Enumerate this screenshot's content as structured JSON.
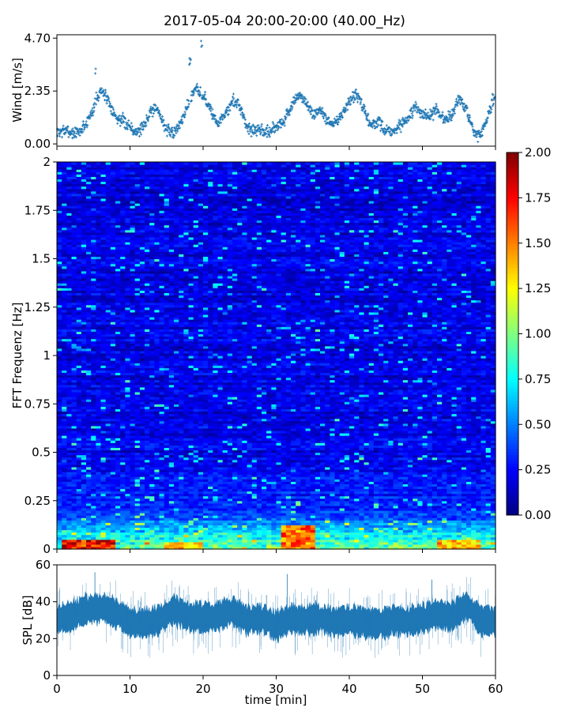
{
  "figure": {
    "title": "2017-05-04 20:00-20:00 (40.00_Hz)",
    "xlabel": "time [min]"
  },
  "chart_data": [
    {
      "type": "scatter",
      "panel": "wind",
      "ylabel": "Wind [m/s]",
      "xlim": [
        0,
        60
      ],
      "ylim": [
        -0.1,
        4.85
      ],
      "yticks": [
        0.0,
        2.35,
        4.7
      ],
      "ytick_labels": [
        "0.00",
        "2.35",
        "4.70"
      ],
      "xticks": [
        0,
        10,
        20,
        30,
        40,
        50,
        60
      ],
      "xtick_labels_shown": false,
      "color": "#1f77b4",
      "marker": "+",
      "x": [
        0,
        1,
        2,
        3,
        4,
        5,
        6,
        7,
        8,
        9,
        10,
        11,
        12,
        13,
        14,
        15,
        16,
        17,
        18,
        19,
        20,
        21,
        22,
        23,
        24,
        25,
        26,
        27,
        28,
        29,
        30,
        31,
        32,
        33,
        34,
        35,
        36,
        37,
        38,
        39,
        40,
        41,
        42,
        43,
        44,
        45,
        46,
        47,
        48,
        49,
        50,
        51,
        52,
        53,
        54,
        55,
        56,
        57,
        58,
        59,
        60
      ],
      "y": [
        0.5,
        0.6,
        0.5,
        0.5,
        0.9,
        1.6,
        2.4,
        2.0,
        1.2,
        1.0,
        0.8,
        0.5,
        0.9,
        1.6,
        1.4,
        0.6,
        0.5,
        1.0,
        1.8,
        2.5,
        2.2,
        1.5,
        0.9,
        1.3,
        1.9,
        1.7,
        0.8,
        0.6,
        0.6,
        0.5,
        0.8,
        1.0,
        1.6,
        2.2,
        1.8,
        1.3,
        1.5,
        1.0,
        0.9,
        1.3,
        1.9,
        2.2,
        1.5,
        0.8,
        1.0,
        0.6,
        0.5,
        0.8,
        1.1,
        1.6,
        1.4,
        1.2,
        1.5,
        1.0,
        1.3,
        2.0,
        1.5,
        0.5,
        0.4,
        1.3,
        2.2
      ],
      "peaks": [
        {
          "x": 18.2,
          "y": 3.9
        },
        {
          "x": 19.8,
          "y": 4.7
        },
        {
          "x": 5.2,
          "y": 3.5
        }
      ]
    },
    {
      "type": "heatmap",
      "panel": "spectrogram",
      "ylabel": "FFT Frequenz [Hz]",
      "xlim": [
        0,
        60
      ],
      "ylim": [
        0,
        2
      ],
      "yticks": [
        0,
        0.25,
        0.5,
        0.75,
        1,
        1.25,
        1.5,
        1.75,
        2
      ],
      "ytick_labels": [
        "0",
        "0.25",
        "0.5",
        "0.75",
        "1",
        "1.25",
        "1.5",
        "1.75",
        "2"
      ],
      "xticks": [
        0,
        10,
        20,
        30,
        40,
        50,
        60
      ],
      "xtick_labels_shown": false,
      "colormap": "jet",
      "colorbar": {
        "range": [
          0,
          2
        ],
        "ticks": [
          0,
          0.25,
          0.5,
          0.75,
          1,
          1.25,
          1.5,
          1.75,
          2
        ],
        "tick_labels": [
          "0.00",
          "0.25",
          "0.50",
          "0.75",
          "1.00",
          "1.25",
          "1.50",
          "1.75",
          "2.00"
        ]
      },
      "typical_level": 0.2,
      "low_frequency_band": {
        "freq_max_hz": 0.2,
        "level": 0.9
      },
      "hot_zones": [
        {
          "t_min": 1,
          "t_max": 8,
          "freq_max_hz": 0.05,
          "level": 1.9
        },
        {
          "t_min": 30.5,
          "t_max": 35,
          "freq_max_hz": 0.12,
          "level": 1.7
        },
        {
          "t_min": 15,
          "t_max": 20,
          "freq_max_hz": 0.04,
          "level": 1.5
        },
        {
          "t_min": 52,
          "t_max": 58,
          "freq_max_hz": 0.05,
          "level": 1.5
        }
      ]
    },
    {
      "type": "area",
      "panel": "spl",
      "ylabel": "SPL [dB]",
      "xlabel": "time [min]",
      "xlim": [
        0,
        60
      ],
      "ylim": [
        0,
        60
      ],
      "yticks": [
        0,
        20,
        40,
        60
      ],
      "ytick_labels": [
        "0",
        "20",
        "40",
        "60"
      ],
      "xticks": [
        0,
        10,
        20,
        30,
        40,
        50,
        60
      ],
      "xtick_labels": [
        "0",
        "10",
        "20",
        "30",
        "40",
        "50",
        "60"
      ],
      "color": "#1f77b4",
      "x": [
        0,
        2,
        4,
        6,
        8,
        10,
        12,
        14,
        16,
        18,
        20,
        22,
        24,
        26,
        28,
        30,
        32,
        34,
        36,
        38,
        40,
        42,
        44,
        46,
        48,
        50,
        52,
        54,
        56,
        58,
        60
      ],
      "y_mean": [
        30,
        32,
        36,
        37,
        34,
        29,
        28,
        30,
        36,
        32,
        31,
        32,
        35,
        30,
        31,
        27,
        31,
        30,
        31,
        29,
        30,
        29,
        28,
        30,
        29,
        31,
        33,
        32,
        38,
        30,
        29
      ],
      "y_band_half_width": 7,
      "spikes": [
        {
          "x": 5.2,
          "y": 56
        },
        {
          "x": 31.5,
          "y": 55
        },
        {
          "x": 51.3,
          "y": 52
        }
      ]
    }
  ]
}
